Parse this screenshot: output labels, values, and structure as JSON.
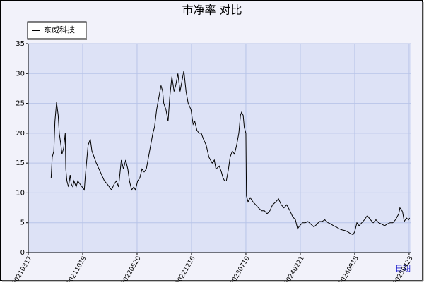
{
  "chart_data": {
    "type": "line",
    "title": "市净率  对比",
    "x_label": "日期",
    "xlim": [
      0,
      7.04
    ],
    "xticks": [
      {
        "value": 0,
        "label": "20210317"
      },
      {
        "value": 1,
        "label": "20211019"
      },
      {
        "value": 2,
        "label": "20220520"
      },
      {
        "value": 3,
        "label": "20221216"
      },
      {
        "value": 4,
        "label": "20230719"
      },
      {
        "value": 5,
        "label": "20240221"
      },
      {
        "value": 6,
        "label": "20240918"
      },
      {
        "value": 7,
        "label": "20250423"
      }
    ],
    "ylim": [
      0,
      35
    ],
    "yticks": [
      0,
      5,
      10,
      15,
      20,
      25,
      30,
      35
    ],
    "grid": true,
    "series": [
      {
        "name": "东威科技",
        "color": "#000000",
        "x": [
          0.42,
          0.44,
          0.47,
          0.49,
          0.52,
          0.55,
          0.57,
          0.6,
          0.62,
          0.65,
          0.68,
          0.69,
          0.71,
          0.74,
          0.77,
          0.79,
          0.82,
          0.84,
          0.88,
          0.91,
          0.95,
          0.99,
          1.03,
          1.05,
          1.08,
          1.1,
          1.14,
          1.17,
          1.21,
          1.25,
          1.3,
          1.35,
          1.4,
          1.45,
          1.49,
          1.53,
          1.58,
          1.62,
          1.66,
          1.71,
          1.75,
          1.79,
          1.83,
          1.86,
          1.9,
          1.94,
          1.97,
          2.01,
          2.05,
          2.09,
          2.13,
          2.17,
          2.21,
          2.25,
          2.29,
          2.32,
          2.36,
          2.4,
          2.44,
          2.47,
          2.49,
          2.53,
          2.57,
          2.6,
          2.64,
          2.68,
          2.71,
          2.75,
          2.79,
          2.83,
          2.86,
          2.9,
          2.94,
          2.99,
          3.03,
          3.06,
          3.1,
          3.14,
          3.18,
          3.22,
          3.27,
          3.32,
          3.38,
          3.42,
          3.45,
          3.51,
          3.55,
          3.58,
          3.61,
          3.64,
          3.68,
          3.71,
          3.75,
          3.79,
          3.83,
          3.87,
          3.9,
          3.92,
          3.95,
          3.97,
          4.0,
          4.01,
          4.04,
          4.08,
          4.13,
          4.18,
          4.23,
          4.29,
          4.34,
          4.39,
          4.44,
          4.49,
          4.55,
          4.6,
          4.65,
          4.7,
          4.75,
          4.81,
          4.86,
          4.91,
          4.95,
          4.99,
          5.04,
          5.09,
          5.14,
          5.19,
          5.25,
          5.3,
          5.35,
          5.4,
          5.45,
          5.51,
          5.56,
          5.61,
          5.66,
          5.71,
          5.77,
          5.82,
          5.87,
          5.92,
          5.97,
          6.0,
          6.04,
          6.08,
          6.13,
          6.18,
          6.23,
          6.29,
          6.34,
          6.39,
          6.44,
          6.49,
          6.55,
          6.6,
          6.65,
          6.7,
          6.75,
          6.81,
          6.83,
          6.86,
          6.88,
          6.91,
          6.95,
          6.99,
          7.01
        ],
        "values": [
          12.5,
          16,
          17,
          22,
          25.2,
          23,
          20,
          18,
          16.5,
          17.5,
          20,
          14,
          12,
          11,
          13,
          11.5,
          11,
          12,
          11,
          12,
          11.5,
          11,
          10.5,
          13,
          16,
          18,
          19,
          17,
          16,
          15,
          14,
          13,
          12,
          11.5,
          11,
          10.5,
          11.5,
          12,
          11,
          15.5,
          14,
          15.5,
          14,
          12,
          10.5,
          11,
          10.5,
          12,
          12.5,
          14,
          13.5,
          14,
          16,
          18,
          20,
          21,
          24,
          26,
          28,
          27,
          25,
          24,
          22,
          26,
          29.5,
          27,
          28,
          30,
          27,
          29,
          30.5,
          27,
          25,
          24,
          21.5,
          22,
          20.5,
          20,
          20,
          19,
          18,
          16,
          15,
          15.5,
          14,
          14.5,
          13.5,
          12.5,
          12,
          12,
          14,
          16,
          17,
          16.5,
          18,
          20,
          23,
          23.5,
          23,
          21,
          20,
          9.5,
          8.5,
          9.2,
          8.5,
          8,
          7.5,
          7,
          7,
          6.5,
          7,
          8,
          8.5,
          9,
          8,
          7.5,
          8,
          7,
          6,
          5.5,
          4,
          4.5,
          5,
          5,
          5.2,
          4.8,
          4.3,
          4.7,
          5.2,
          5.2,
          5.5,
          5,
          4.8,
          4.5,
          4.3,
          4,
          3.8,
          3.7,
          3.5,
          3.2,
          3,
          3.5,
          5,
          4.5,
          5,
          5.5,
          6.2,
          5.5,
          5,
          5.5,
          5,
          4.8,
          4.5,
          4.8,
          5,
          5,
          5.5,
          6.5,
          7.5,
          7.2,
          6.8,
          5.2,
          5.8,
          5.5,
          5.8
        ]
      }
    ]
  }
}
